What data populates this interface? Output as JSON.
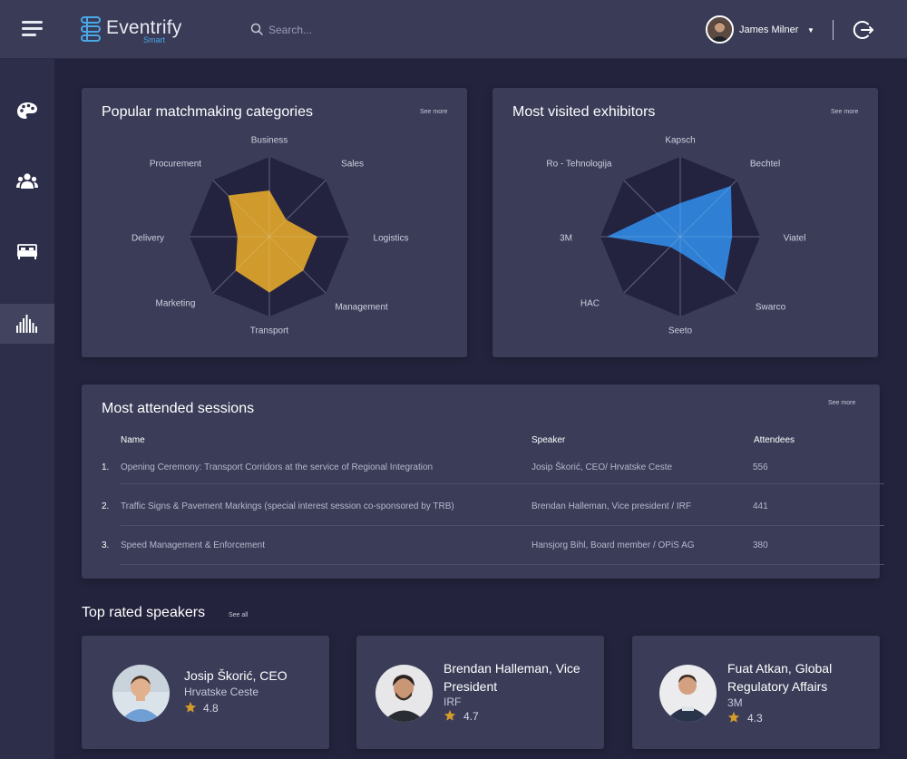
{
  "app": {
    "name": "Eventrify",
    "sub": "Smart"
  },
  "search": {
    "placeholder": "Search..."
  },
  "user": {
    "name": "James Milner"
  },
  "colors": {
    "categories_fill": "#d09b2c",
    "exhibitors_fill": "#2f80d4"
  },
  "sidebar": {
    "items": [
      {
        "icon": "palette-icon"
      },
      {
        "icon": "users-icon"
      },
      {
        "icon": "bed-icon"
      },
      {
        "icon": "equalizer-icon"
      }
    ],
    "active_index": 3
  },
  "categories": {
    "title": "Popular matchmaking categories",
    "see_more": "See more"
  },
  "exhibitors": {
    "title": "Most visited exhibitors",
    "see_more": "See more"
  },
  "chart_data": [
    {
      "type": "radar",
      "labels": [
        "Business",
        "Sales",
        "Logistics",
        "Management",
        "Transport",
        "Marketing",
        "Delivery",
        "Procurement"
      ],
      "values": [
        0.58,
        0.3,
        0.6,
        0.6,
        0.7,
        0.6,
        0.4,
        0.73
      ],
      "range": [
        0,
        1
      ],
      "fill_color": "#d09b2c"
    },
    {
      "type": "radar",
      "labels": [
        "Kapsch",
        "Bechtel",
        "Viatel",
        "Swarco",
        "Seeto",
        "HAC",
        "3M",
        "Ro - Tehnologija"
      ],
      "values": [
        0.42,
        0.9,
        0.65,
        0.78,
        0.2,
        0.18,
        0.92,
        0.42
      ],
      "range": [
        0,
        1
      ],
      "fill_color": "#2f80d4"
    }
  ],
  "sessions": {
    "title": "Most attended sessions",
    "see_more": "See more",
    "headers": {
      "name": "Name",
      "speaker": "Speaker",
      "attendees": "Attendees"
    },
    "rows": [
      {
        "num": "1.",
        "name": "Opening Ceremony: Transport Corridors at the service of Regional Integration",
        "speaker": "Josip Škorić, CEO/ Hrvatske Ceste",
        "attendees": "556"
      },
      {
        "num": "2.",
        "name": "Traffic Signs & Pavement Markings (special interest session co-sponsored by TRB)",
        "speaker": "Brendan Halleman, Vice president / IRF",
        "attendees": "441"
      },
      {
        "num": "3.",
        "name": "Speed Management & Enforcement",
        "speaker": "Hansjorg Bihl, Board member / OPiS AG",
        "attendees": "380"
      }
    ]
  },
  "speakers": {
    "title": "Top rated speakers",
    "see_all": "See all",
    "items": [
      {
        "name": "Josip Škorić, CEO",
        "org": "Hrvatske Ceste",
        "rating": "4.8"
      },
      {
        "name": "Brendan Halleman, Vice President",
        "org": "IRF",
        "rating": "4.7"
      },
      {
        "name": "Fuat Atkan, Global Regulatory Affairs",
        "org": "3M",
        "rating": "4.3"
      }
    ]
  }
}
